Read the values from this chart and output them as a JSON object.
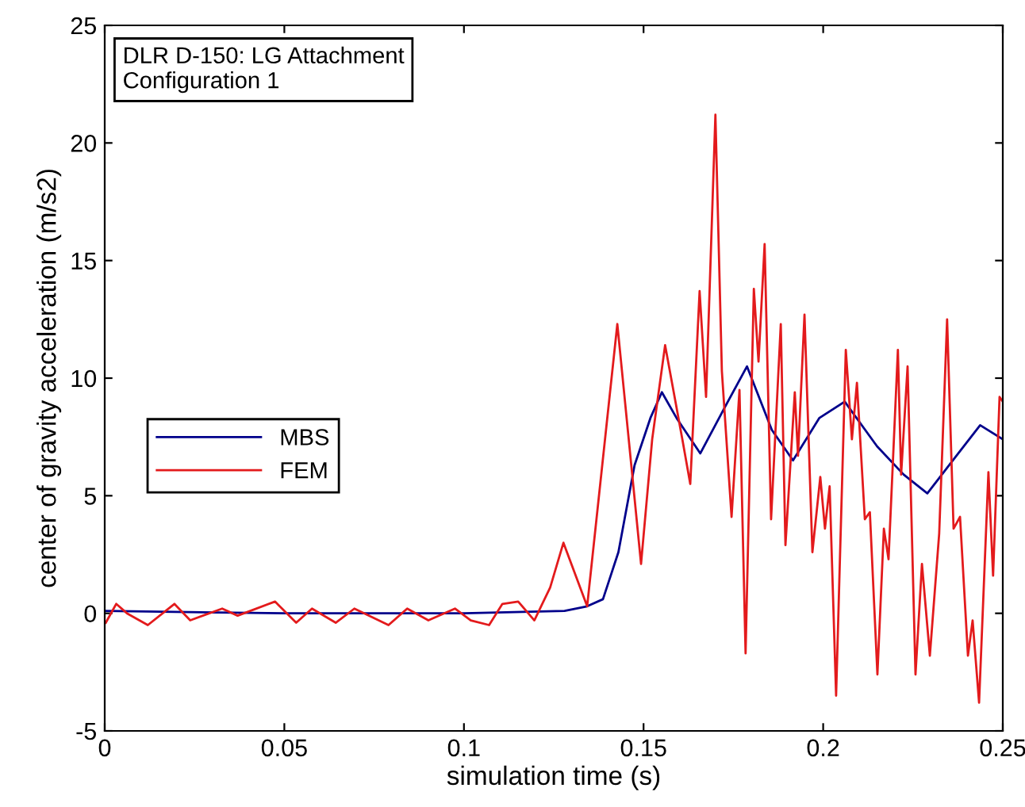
{
  "chart_data": {
    "type": "line",
    "xlabel": "simulation time (s)",
    "ylabel": "center of gravity acceleration (m/s2)",
    "annotations": [
      "DLR D-150: LG Attachment\nConfiguration 1"
    ],
    "xlim": [
      0,
      0.25
    ],
    "xticks": [
      0,
      0.05,
      0.1,
      0.15,
      0.2,
      0.25
    ],
    "ylim": [
      -5,
      25
    ],
    "yticks": [
      -5,
      0,
      5,
      10,
      15,
      20,
      25
    ],
    "legend": "left",
    "grid": false,
    "series": [
      {
        "name": "MBS",
        "color": "#00008b",
        "x": [
          0,
          0.05,
          0.1,
          0.128,
          0.1343,
          0.1387,
          0.143,
          0.1475,
          0.1519,
          0.1551,
          0.1592,
          0.1658,
          0.1724,
          0.1788,
          0.1857,
          0.1916,
          0.1989,
          0.206,
          0.215,
          0.2224,
          0.229,
          0.2371,
          0.2437,
          0.25
        ],
        "values": [
          0.1,
          0,
          0,
          0.1,
          0.3,
          0.6,
          2.6,
          6.3,
          8.3,
          9.4,
          8.3,
          6.8,
          8.7,
          10.5,
          7.8,
          6.5,
          8.3,
          9.0,
          7.1,
          5.9,
          5.1,
          6.7,
          8.0,
          7.4
        ]
      },
      {
        "name": "FEM",
        "color": "#e31a1c",
        "x": [
          0.0003,
          0.0032,
          0.0062,
          0.012,
          0.0194,
          0.0238,
          0.0327,
          0.037,
          0.0474,
          0.0533,
          0.0577,
          0.0643,
          0.0695,
          0.079,
          0.0842,
          0.0901,
          0.0975,
          0.1019,
          0.107,
          0.1107,
          0.1151,
          0.1196,
          0.124,
          0.1277,
          0.1343,
          0.1427,
          0.1493,
          0.1524,
          0.156,
          0.1608,
          0.163,
          0.1656,
          0.1674,
          0.17,
          0.1718,
          0.1745,
          0.1767,
          0.1784,
          0.1807,
          0.182,
          0.1837,
          0.1855,
          0.1882,
          0.1895,
          0.1921,
          0.193,
          0.1948,
          0.197,
          0.1992,
          0.2005,
          0.2018,
          0.2036,
          0.2063,
          0.208,
          0.2094,
          0.2116,
          0.213,
          0.2151,
          0.2169,
          0.2182,
          0.2208,
          0.2217,
          0.2235,
          0.2257,
          0.2275,
          0.2297,
          0.2323,
          0.2345,
          0.2363,
          0.2381,
          0.2403,
          0.2416,
          0.2434,
          0.246,
          0.2473,
          0.2491,
          0.25
        ],
        "values": [
          -0.4,
          0.4,
          0,
          -0.5,
          0.4,
          -0.3,
          0.2,
          -0.1,
          0.5,
          -0.4,
          0.2,
          -0.4,
          0.2,
          -0.5,
          0.2,
          -0.3,
          0.2,
          -0.3,
          -0.5,
          0.4,
          0.5,
          -0.3,
          1.1,
          3.0,
          0.3,
          12.3,
          2.1,
          7.4,
          11.4,
          7.4,
          5.5,
          13.7,
          9.2,
          21.2,
          10.3,
          4.1,
          9.5,
          -1.7,
          13.8,
          10.7,
          15.7,
          4.0,
          12.3,
          2.9,
          9.4,
          6.7,
          12.7,
          2.6,
          5.8,
          3.6,
          5.4,
          -3.5,
          11.2,
          7.4,
          9.8,
          4.0,
          4.3,
          -2.6,
          3.6,
          2.3,
          11.2,
          5.9,
          10.5,
          -2.6,
          2.1,
          -1.8,
          3.4,
          12.5,
          3.6,
          4.1,
          -1.8,
          -0.3,
          -3.8,
          6.0,
          1.6,
          9.2,
          9.0
        ]
      }
    ]
  }
}
